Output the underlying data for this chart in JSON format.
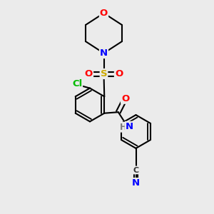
{
  "bg_color": "#ebebeb",
  "bond_color": "#000000",
  "bond_width": 1.5,
  "atom_colors": {
    "O": "#ff0000",
    "N": "#0000ff",
    "S": "#ccaa00",
    "Cl": "#00bb00",
    "C": "#000000",
    "H": "#777777"
  },
  "font_size": 9.5
}
